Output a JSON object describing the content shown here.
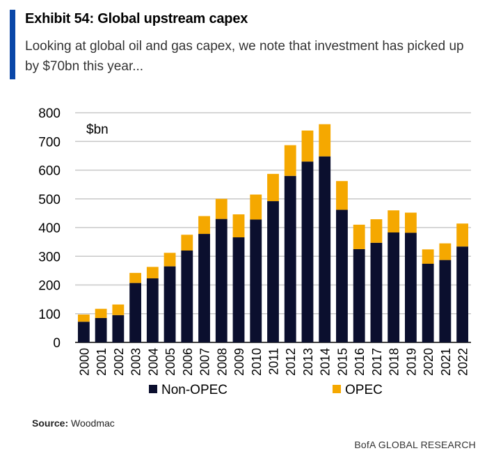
{
  "exhibit": {
    "title": "Exhibit 54: Global upstream capex",
    "subtitle": "Looking at global oil and gas capex, we note that investment has picked up by $70bn this year..."
  },
  "source": {
    "label": "Source:",
    "text": "Woodmac"
  },
  "footer": {
    "brand": "BofA GLOBAL RESEARCH"
  },
  "chart_data": {
    "type": "bar",
    "stacked": true,
    "unit_label": "$bn",
    "ylim": [
      0,
      800
    ],
    "yticks": [
      0,
      100,
      200,
      300,
      400,
      500,
      600,
      700,
      800
    ],
    "grid": true,
    "legend_position": "bottom",
    "categories": [
      "2000",
      "2001",
      "2002",
      "2003",
      "2004",
      "2005",
      "2006",
      "2007",
      "2008",
      "2009",
      "2010",
      "2011",
      "2012",
      "2013",
      "2014",
      "2015",
      "2016",
      "2017",
      "2018",
      "2019",
      "2020",
      "2021",
      "2022"
    ],
    "series": [
      {
        "name": "Non-OPEC",
        "color": "#0b0f2e",
        "values": [
          72,
          85,
          95,
          207,
          223,
          265,
          320,
          378,
          430,
          366,
          428,
          492,
          580,
          630,
          648,
          462,
          325,
          347,
          383,
          382,
          274,
          287,
          334
        ]
      },
      {
        "name": "OPEC",
        "color": "#f5a800",
        "values": [
          25,
          32,
          37,
          35,
          40,
          47,
          55,
          62,
          70,
          80,
          87,
          95,
          107,
          108,
          112,
          100,
          85,
          82,
          77,
          70,
          50,
          58,
          80
        ]
      }
    ]
  }
}
